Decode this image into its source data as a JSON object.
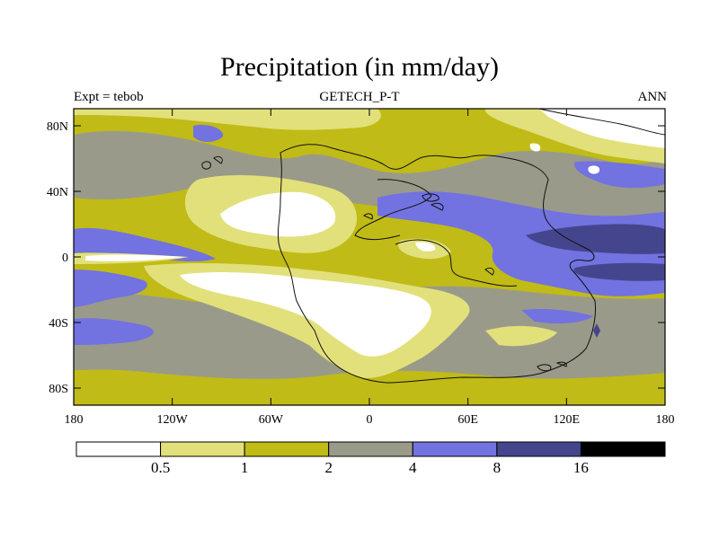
{
  "title": "Precipitation (in mm/day)",
  "subtitle_left": "Expt = tebob",
  "subtitle_center": "GETECH_P-T",
  "subtitle_right": "ANN",
  "y_ticks": [
    "80N",
    "40N",
    "0",
    "40S",
    "80S"
  ],
  "x_ticks": [
    "180",
    "120W",
    "60W",
    "0",
    "60E",
    "120E",
    "180"
  ],
  "colorbar": {
    "colors": [
      "#ffffff",
      "#e2e07a",
      "#c0bb16",
      "#9a9a8a",
      "#7272e0",
      "#45458e",
      "#000000"
    ],
    "labels": [
      "0.5",
      "1",
      "2",
      "4",
      "8",
      "16"
    ]
  },
  "palette": {
    "white": "#ffffff",
    "light_yellow": "#e2e07a",
    "olive": "#c0bb16",
    "gray": "#9a9a8a",
    "blue": "#7272e0",
    "dark_blue": "#45458e"
  }
}
